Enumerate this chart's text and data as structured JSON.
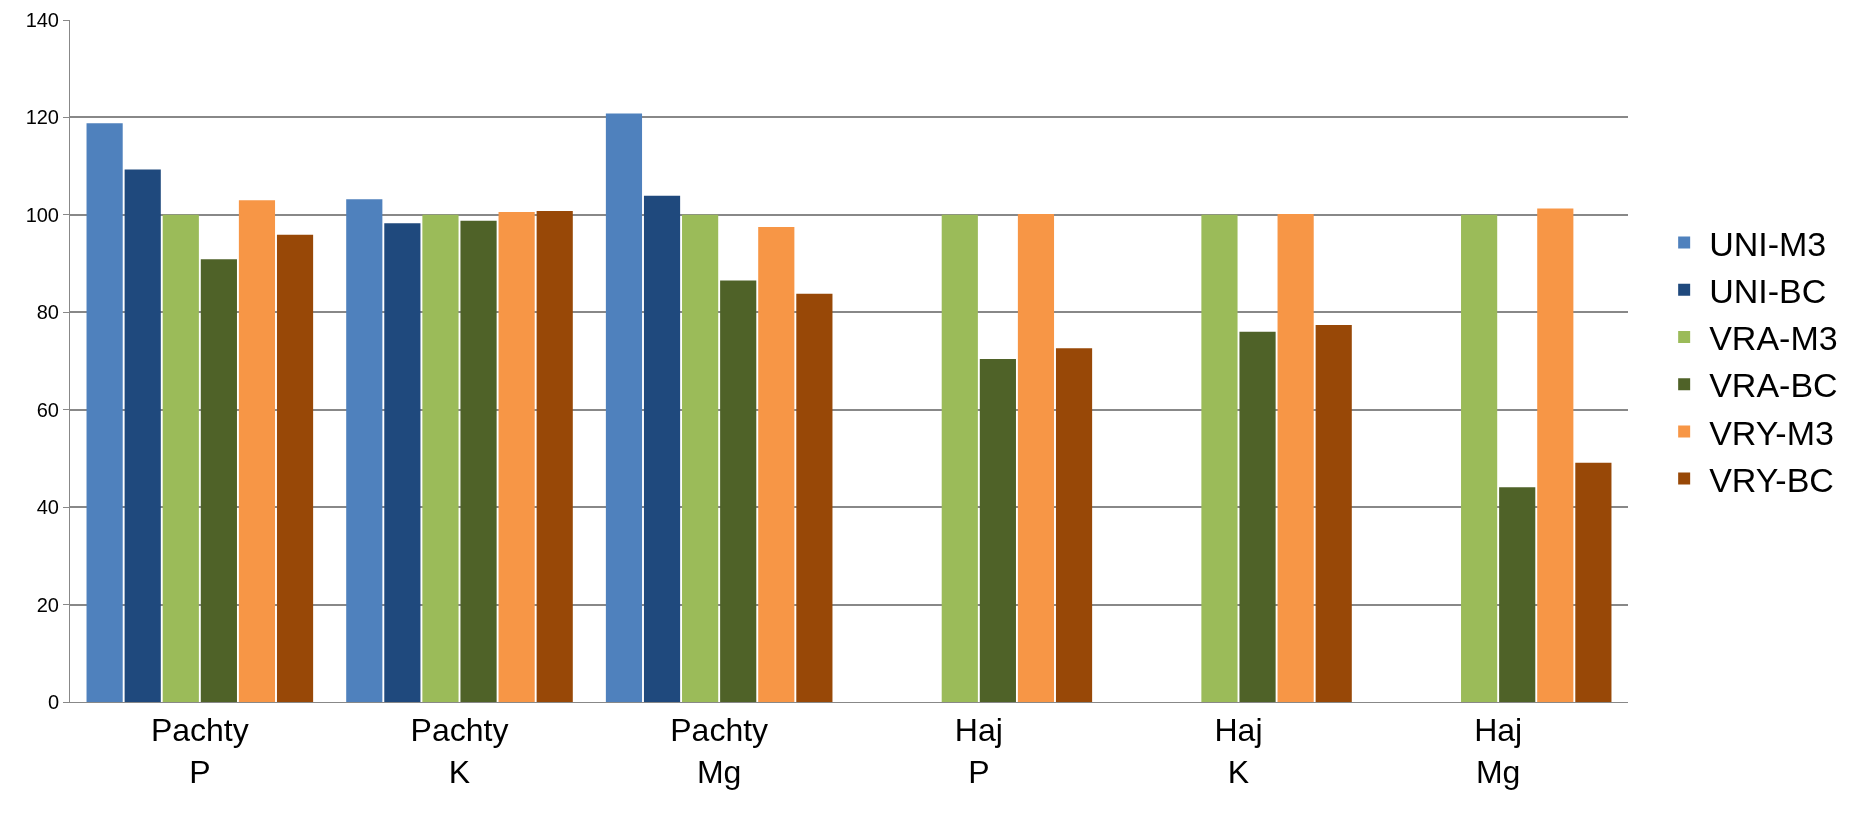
{
  "chart_data": {
    "type": "bar",
    "categories": [
      "Pachty\nP",
      "Pachty\nK",
      "Pachty\nMg",
      "Haj\nP",
      "Haj\nK",
      "Haj\nMg"
    ],
    "series": [
      {
        "name": "UNI-M3",
        "color": "#4f81bd",
        "values": [
          118.8,
          103.2,
          120.8,
          null,
          null,
          null
        ]
      },
      {
        "name": "UNI-BC",
        "color": "#1f497d",
        "values": [
          109.3,
          98.3,
          103.9,
          null,
          null,
          null
        ]
      },
      {
        "name": "VRA-M3",
        "color": "#9bbb59",
        "values": [
          100,
          100,
          100,
          100,
          100,
          100
        ]
      },
      {
        "name": "VRA-BC",
        "color": "#4f6228",
        "values": [
          90.9,
          98.8,
          86.5,
          70.4,
          76,
          44.1
        ]
      },
      {
        "name": "VRY-M3",
        "color": "#f79646",
        "values": [
          103,
          100.6,
          97.5,
          100.2,
          100.2,
          101.3
        ]
      },
      {
        "name": "VRY-BC",
        "color": "#984807",
        "values": [
          95.9,
          100.8,
          83.8,
          72.6,
          77.4,
          49.1
        ]
      }
    ],
    "ylim": [
      0,
      140
    ],
    "yticks": [
      0,
      20,
      40,
      60,
      80,
      100,
      120,
      140
    ],
    "grid": "y",
    "legend": "right"
  }
}
